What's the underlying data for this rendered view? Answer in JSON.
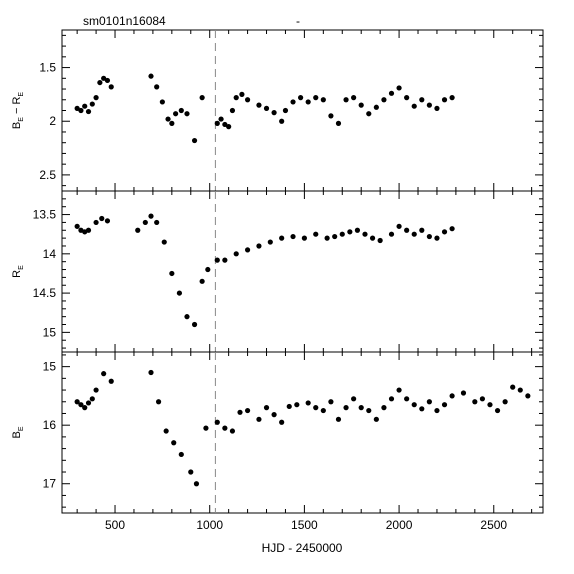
{
  "header": {
    "field_id": "sm0101n16084",
    "dash": "-"
  },
  "chart_data": {
    "type": "scatter",
    "xlabel": "HJD - 2450000",
    "xlim": [
      220,
      2760
    ],
    "xticks": [
      500,
      1000,
      1500,
      2000,
      2500
    ],
    "vline_x": 1030,
    "panels": [
      {
        "id": "color",
        "ylabel_main": "B",
        "ylabel_sub": "E",
        "ylabel_mid": " − R",
        "ylabel_sub2": "E",
        "ylim": [
          2.65,
          1.15
        ],
        "invert": false,
        "yticks": [
          1.5,
          2,
          2.5
        ],
        "ytick_labels": [
          "1.5",
          "2",
          "2.5"
        ],
        "points": [
          [
            300,
            1.88
          ],
          [
            320,
            1.9
          ],
          [
            340,
            1.86
          ],
          [
            360,
            1.91
          ],
          [
            380,
            1.84
          ],
          [
            400,
            1.78
          ],
          [
            420,
            1.64
          ],
          [
            440,
            1.6
          ],
          [
            460,
            1.62
          ],
          [
            480,
            1.68
          ],
          [
            690,
            1.58
          ],
          [
            720,
            1.68
          ],
          [
            750,
            1.82
          ],
          [
            780,
            1.98
          ],
          [
            800,
            2.02
          ],
          [
            820,
            1.93
          ],
          [
            850,
            1.9
          ],
          [
            880,
            1.93
          ],
          [
            920,
            2.18
          ],
          [
            960,
            1.78
          ],
          [
            1040,
            2.02
          ],
          [
            1060,
            1.98
          ],
          [
            1080,
            2.03
          ],
          [
            1100,
            2.05
          ],
          [
            1120,
            1.9
          ],
          [
            1140,
            1.78
          ],
          [
            1170,
            1.75
          ],
          [
            1200,
            1.8
          ],
          [
            1260,
            1.85
          ],
          [
            1300,
            1.88
          ],
          [
            1340,
            1.92
          ],
          [
            1380,
            2.0
          ],
          [
            1400,
            1.9
          ],
          [
            1440,
            1.82
          ],
          [
            1480,
            1.78
          ],
          [
            1520,
            1.82
          ],
          [
            1560,
            1.78
          ],
          [
            1600,
            1.8
          ],
          [
            1640,
            1.95
          ],
          [
            1680,
            2.02
          ],
          [
            1720,
            1.8
          ],
          [
            1760,
            1.78
          ],
          [
            1800,
            1.85
          ],
          [
            1840,
            1.93
          ],
          [
            1880,
            1.87
          ],
          [
            1920,
            1.8
          ],
          [
            1960,
            1.74
          ],
          [
            2000,
            1.69
          ],
          [
            2040,
            1.78
          ],
          [
            2080,
            1.86
          ],
          [
            2120,
            1.8
          ],
          [
            2160,
            1.85
          ],
          [
            2200,
            1.88
          ],
          [
            2240,
            1.8
          ],
          [
            2280,
            1.78
          ]
        ]
      },
      {
        "id": "r-mag",
        "ylabel_main": "R",
        "ylabel_sub": "E",
        "ylim": [
          15.25,
          13.2
        ],
        "invert": true,
        "yticks": [
          13.5,
          14,
          14.5,
          15
        ],
        "ytick_labels": [
          "13.5",
          "14",
          "14.5",
          "15"
        ],
        "points": [
          [
            300,
            13.65
          ],
          [
            320,
            13.7
          ],
          [
            340,
            13.72
          ],
          [
            360,
            13.7
          ],
          [
            400,
            13.6
          ],
          [
            430,
            13.55
          ],
          [
            460,
            13.58
          ],
          [
            620,
            13.7
          ],
          [
            660,
            13.6
          ],
          [
            690,
            13.52
          ],
          [
            720,
            13.6
          ],
          [
            760,
            13.85
          ],
          [
            800,
            14.25
          ],
          [
            840,
            14.5
          ],
          [
            880,
            14.8
          ],
          [
            920,
            14.9
          ],
          [
            960,
            14.35
          ],
          [
            990,
            14.2
          ],
          [
            1040,
            14.08
          ],
          [
            1080,
            14.08
          ],
          [
            1140,
            14.0
          ],
          [
            1200,
            13.95
          ],
          [
            1260,
            13.9
          ],
          [
            1320,
            13.85
          ],
          [
            1380,
            13.8
          ],
          [
            1440,
            13.78
          ],
          [
            1500,
            13.8
          ],
          [
            1560,
            13.75
          ],
          [
            1620,
            13.8
          ],
          [
            1660,
            13.78
          ],
          [
            1700,
            13.75
          ],
          [
            1740,
            13.72
          ],
          [
            1780,
            13.7
          ],
          [
            1820,
            13.75
          ],
          [
            1860,
            13.8
          ],
          [
            1900,
            13.83
          ],
          [
            1960,
            13.75
          ],
          [
            2000,
            13.65
          ],
          [
            2040,
            13.7
          ],
          [
            2080,
            13.75
          ],
          [
            2120,
            13.7
          ],
          [
            2160,
            13.78
          ],
          [
            2200,
            13.8
          ],
          [
            2240,
            13.72
          ],
          [
            2280,
            13.68
          ]
        ]
      },
      {
        "id": "b-mag",
        "ylabel_main": "B",
        "ylabel_sub": "E",
        "ylim": [
          17.5,
          14.75
        ],
        "invert": true,
        "yticks": [
          15,
          16,
          17
        ],
        "ytick_labels": [
          "15",
          "16",
          "17"
        ],
        "points": [
          [
            300,
            15.6
          ],
          [
            320,
            15.65
          ],
          [
            340,
            15.7
          ],
          [
            360,
            15.62
          ],
          [
            380,
            15.55
          ],
          [
            400,
            15.4
          ],
          [
            440,
            15.12
          ],
          [
            480,
            15.25
          ],
          [
            690,
            15.1
          ],
          [
            730,
            15.6
          ],
          [
            770,
            16.1
          ],
          [
            810,
            16.3
          ],
          [
            850,
            16.5
          ],
          [
            900,
            16.8
          ],
          [
            930,
            17.0
          ],
          [
            980,
            16.05
          ],
          [
            1040,
            15.95
          ],
          [
            1080,
            16.05
          ],
          [
            1120,
            16.1
          ],
          [
            1160,
            15.78
          ],
          [
            1200,
            15.75
          ],
          [
            1260,
            15.9
          ],
          [
            1300,
            15.7
          ],
          [
            1340,
            15.82
          ],
          [
            1380,
            15.95
          ],
          [
            1420,
            15.68
          ],
          [
            1460,
            15.65
          ],
          [
            1520,
            15.62
          ],
          [
            1560,
            15.7
          ],
          [
            1600,
            15.75
          ],
          [
            1640,
            15.6
          ],
          [
            1680,
            15.9
          ],
          [
            1720,
            15.7
          ],
          [
            1760,
            15.55
          ],
          [
            1800,
            15.7
          ],
          [
            1840,
            15.75
          ],
          [
            1880,
            15.9
          ],
          [
            1920,
            15.7
          ],
          [
            1960,
            15.55
          ],
          [
            2000,
            15.4
          ],
          [
            2040,
            15.55
          ],
          [
            2080,
            15.65
          ],
          [
            2120,
            15.72
          ],
          [
            2160,
            15.6
          ],
          [
            2200,
            15.75
          ],
          [
            2240,
            15.65
          ],
          [
            2280,
            15.5
          ],
          [
            2340,
            15.45
          ],
          [
            2400,
            15.6
          ],
          [
            2440,
            15.55
          ],
          [
            2480,
            15.65
          ],
          [
            2520,
            15.75
          ],
          [
            2560,
            15.6
          ],
          [
            2600,
            15.35
          ],
          [
            2640,
            15.4
          ],
          [
            2680,
            15.5
          ]
        ]
      }
    ]
  }
}
